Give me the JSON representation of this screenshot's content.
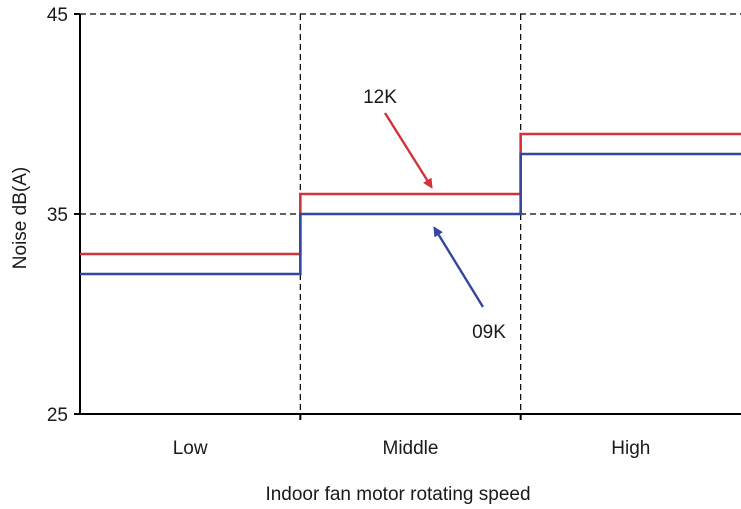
{
  "chart_data": {
    "type": "line",
    "step": true,
    "title": "",
    "xlabel": "Indoor fan motor rotating speed",
    "ylabel": "Noise dB(A)",
    "categories": [
      "Low",
      "Middle",
      "High"
    ],
    "ylim": [
      25,
      45
    ],
    "yticks": [
      25,
      35,
      45
    ],
    "grid": "dashed at category boundaries and y ticks",
    "series": [
      {
        "name": "12K",
        "values": [
          33,
          36,
          39
        ],
        "color": "#d1333b"
      },
      {
        "name": "09K",
        "values": [
          32,
          35,
          38
        ],
        "color": "#3447a0"
      }
    ],
    "annotations": [
      {
        "text": "12K",
        "series": "12K",
        "target_category": "Middle"
      },
      {
        "text": "09K",
        "series": "09K",
        "target_category": "Middle"
      }
    ]
  }
}
